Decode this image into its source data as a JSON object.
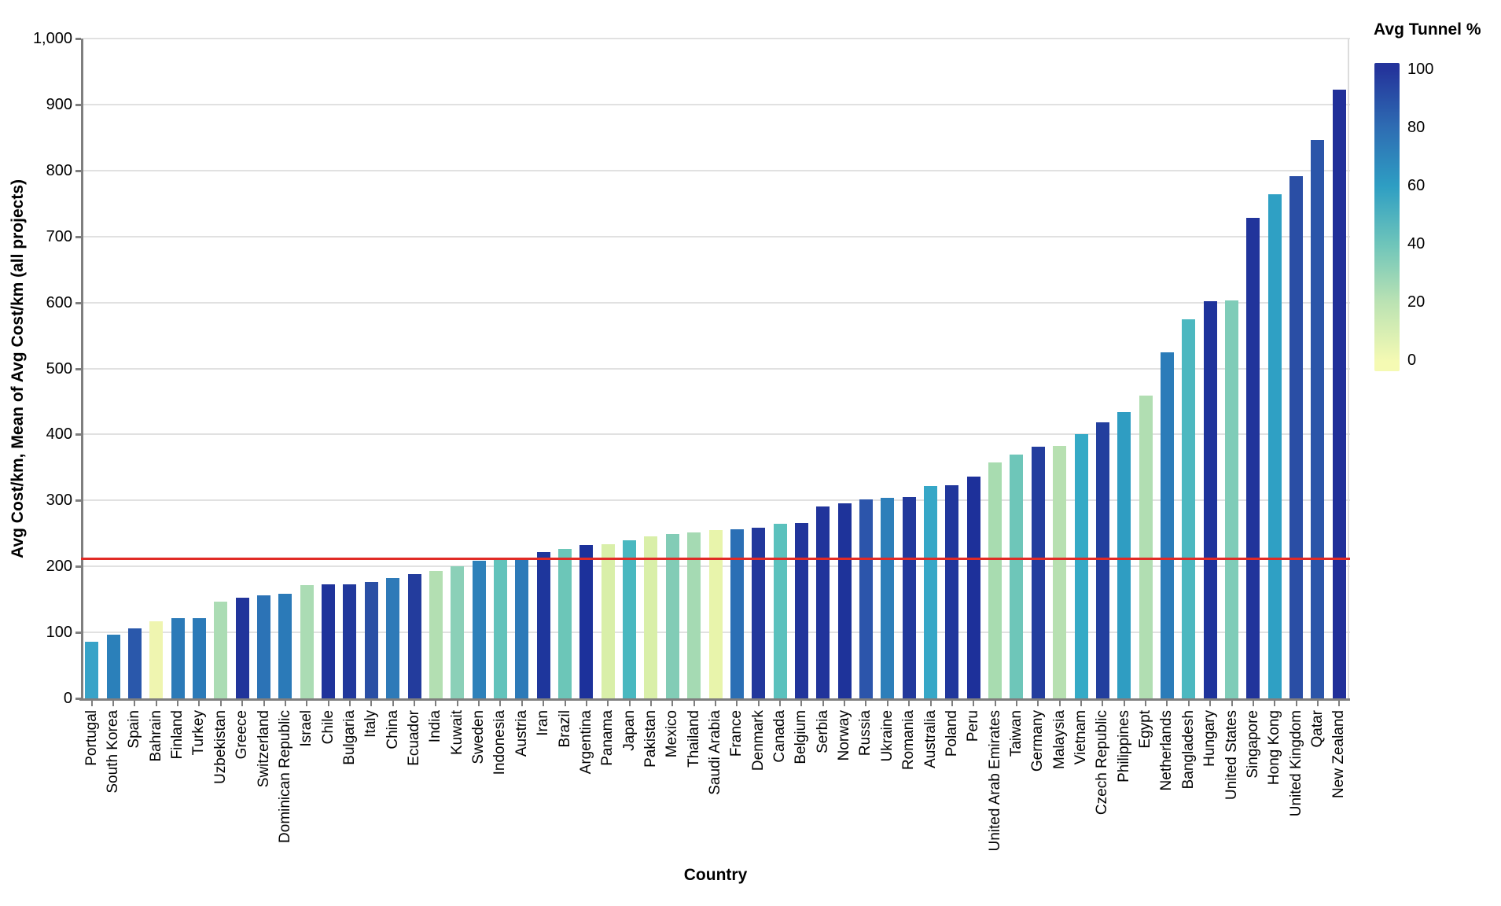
{
  "chart_data": {
    "type": "bar",
    "title": "",
    "xlabel": "Country",
    "ylabel": "Avg Cost/km, Mean of Avg Cost/km (all projects)",
    "ylim": [
      0,
      1000
    ],
    "grid": true,
    "ytick_values": [
      0,
      100,
      200,
      300,
      400,
      500,
      600,
      700,
      800,
      900,
      1000
    ],
    "ytick_labels": [
      "0",
      "100",
      "200",
      "300",
      "400",
      "500",
      "600",
      "700",
      "800",
      "900",
      "1,000"
    ],
    "mean_line": {
      "value": 212,
      "color": "#e12b26"
    },
    "legend": {
      "title": "Avg Tunnel %",
      "ticks": [
        100,
        80,
        60,
        40,
        20,
        0
      ],
      "gradient_top_to_bottom": [
        "#24349b",
        "#2e6db3",
        "#2e9ec3",
        "#6fc5ba",
        "#bce3b3",
        "#f5fab3"
      ]
    },
    "categories": [
      "Portugal",
      "South Korea",
      "Spain",
      "Bahrain",
      "Finland",
      "Turkey",
      "Uzbekistan",
      "Greece",
      "Switzerland",
      "Dominican Republic",
      "Israel",
      "Chile",
      "Bulgaria",
      "Italy",
      "China",
      "Ecuador",
      "India",
      "Kuwait",
      "Sweden",
      "Indonesia",
      "Austria",
      "Iran",
      "Brazil",
      "Argentina",
      "Panama",
      "Japan",
      "Pakistan",
      "Mexico",
      "Thailand",
      "Saudi Arabia",
      "France",
      "Denmark",
      "Canada",
      "Belgium",
      "Serbia",
      "Norway",
      "Russia",
      "Ukraine",
      "Romania",
      "Australia",
      "Poland",
      "Peru",
      "United Arab Emirates",
      "Taiwan",
      "Germany",
      "Malaysia",
      "Vietnam",
      "Czech Republic",
      "Philippines",
      "Egypt",
      "Netherlands",
      "Bangladesh",
      "Hungary",
      "United States",
      "Singapore",
      "Hong Kong",
      "United Kingdom",
      "Qatar",
      "New Zealand"
    ],
    "values": [
      86,
      97,
      106,
      117,
      122,
      122,
      147,
      153,
      156,
      159,
      172,
      173,
      173,
      176,
      182,
      188,
      193,
      200,
      209,
      211,
      211,
      222,
      226,
      232,
      234,
      240,
      246,
      249,
      252,
      255,
      256,
      259,
      265,
      266,
      291,
      295,
      301,
      304,
      305,
      322,
      323,
      336,
      358,
      369,
      382,
      383,
      400,
      418,
      434,
      459,
      525,
      574,
      602,
      603,
      728,
      764,
      791,
      846,
      923
    ],
    "bar_colors": [
      "#38a3c8",
      "#2b80ba",
      "#2a58ab",
      "#eff5b0",
      "#2b7ab8",
      "#2b7ab8",
      "#abdcb4",
      "#21349b",
      "#2c73b6",
      "#2b7ab8",
      "#abdcb4",
      "#1f339b",
      "#21389c",
      "#2a4fa5",
      "#2e7ab8",
      "#233c9d",
      "#b3dfb2",
      "#8bd0b8",
      "#2e81ba",
      "#62c3bb",
      "#2d7ab8",
      "#1e369c",
      "#6cc6b8",
      "#1c319b",
      "#d9efa9",
      "#49b8c0",
      "#d9efa9",
      "#82ccb6",
      "#a5dab3",
      "#e8f4ab",
      "#2b6fb5",
      "#22389c",
      "#5bc1bd",
      "#21349b",
      "#21349b",
      "#1e339a",
      "#2c55ab",
      "#2d7fba",
      "#22399c",
      "#36a7c7",
      "#21379c",
      "#1d309a",
      "#a8dcb0",
      "#6ec6b9",
      "#233d9e",
      "#b7e0b1",
      "#35aac6",
      "#233f9e",
      "#2f9dc2",
      "#b1deb2",
      "#2b7cb9",
      "#4cb8c0",
      "#1e339b",
      "#7fccb8",
      "#21349b",
      "#2fa0c4",
      "#2a4ea5",
      "#2b55a9",
      "#202f99"
    ]
  }
}
